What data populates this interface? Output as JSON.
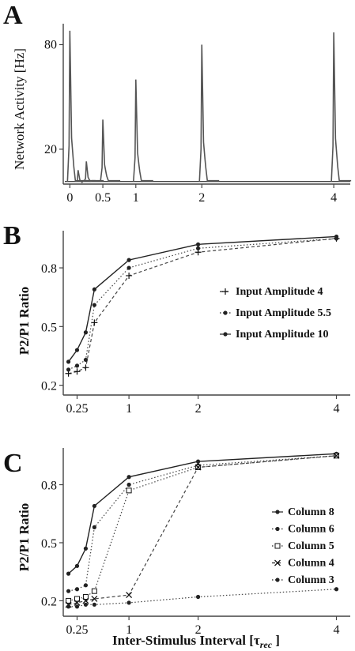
{
  "panels": {
    "A": "A",
    "B": "B",
    "C": "C"
  },
  "chart_data": [
    {
      "panel": "A",
      "type": "line",
      "title": "",
      "xlabel": "",
      "ylabel": "Network Activity [Hz]",
      "x_ticks": [
        "0",
        "0.5",
        "1",
        "2",
        "4"
      ],
      "x_tick_values": [
        0,
        0.5,
        1,
        2,
        4
      ],
      "y_ticks": [
        "20",
        "80"
      ],
      "y_tick_values": [
        20,
        80
      ],
      "xlim": [
        -0.1,
        4.25
      ],
      "ylim": [
        0,
        92
      ],
      "baseline": 1.5,
      "color": "#555555",
      "spikes": [
        {
          "x": 0.0,
          "peak": 88
        },
        {
          "x": 0.125,
          "peak": 8
        },
        {
          "x": 0.25,
          "peak": 13
        },
        {
          "x": 0.5,
          "peak": 37
        },
        {
          "x": 1.0,
          "peak": 60
        },
        {
          "x": 2.0,
          "peak": 80
        },
        {
          "x": 4.0,
          "peak": 87
        }
      ]
    },
    {
      "panel": "B",
      "type": "line",
      "title": "",
      "xlabel": "",
      "ylabel": "P2/P1 Ratio",
      "x_ticks": [
        "0.25",
        "1",
        "2",
        "4"
      ],
      "x_tick_values": [
        0.25,
        1,
        2,
        4
      ],
      "y_ticks": [
        "0.2",
        "0.5",
        "0.8"
      ],
      "y_tick_values": [
        0.2,
        0.5,
        0.8
      ],
      "xlim": [
        0.05,
        4.2
      ],
      "ylim": [
        0.15,
        0.99
      ],
      "legend_position": "right",
      "x": [
        0.125,
        0.25,
        0.375,
        0.5,
        1,
        2,
        4
      ],
      "series": [
        {
          "name": "Input Amplitude 4",
          "values": [
            0.26,
            0.27,
            0.29,
            0.52,
            0.76,
            0.88,
            0.95
          ],
          "style": "dashed",
          "marker": "plus"
        },
        {
          "name": "Input Amplitude 5.5",
          "values": [
            0.28,
            0.3,
            0.33,
            0.61,
            0.8,
            0.9,
            0.95
          ],
          "style": "dotted",
          "marker": "dot"
        },
        {
          "name": "Input Amplitude 10",
          "values": [
            0.32,
            0.38,
            0.47,
            0.69,
            0.84,
            0.92,
            0.96
          ],
          "style": "solid",
          "marker": "dot"
        }
      ]
    },
    {
      "panel": "C",
      "type": "line",
      "title": "",
      "xlabel": "Inter-Stimulus Interval [τ",
      "xlabel_sub": "rec",
      "xlabel_end": " ]",
      "ylabel": "P2/P1 Ratio",
      "x_ticks": [
        "0.25",
        "1",
        "2",
        "4"
      ],
      "x_tick_values": [
        0.25,
        1,
        2,
        4
      ],
      "y_ticks": [
        "0.2",
        "0.5",
        "0.8"
      ],
      "y_tick_values": [
        0.2,
        0.5,
        0.8
      ],
      "xlim": [
        0.05,
        4.2
      ],
      "ylim": [
        0.12,
        0.99
      ],
      "legend_position": "right",
      "x": [
        0.125,
        0.25,
        0.375,
        0.5,
        1,
        2,
        4
      ],
      "series": [
        {
          "name": "Column 8",
          "values": [
            0.34,
            0.38,
            0.47,
            0.69,
            0.84,
            0.92,
            0.96
          ],
          "style": "solid",
          "marker": "dot"
        },
        {
          "name": "Column 6",
          "values": [
            0.25,
            0.26,
            0.28,
            0.58,
            0.8,
            0.9,
            0.95
          ],
          "style": "dotted",
          "marker": "dot"
        },
        {
          "name": "Column 5",
          "values": [
            0.2,
            0.21,
            0.22,
            0.25,
            0.77,
            0.89,
            0.95
          ],
          "style": "dotted",
          "marker": "square"
        },
        {
          "name": "Column 4",
          "values": [
            0.18,
            0.19,
            0.2,
            0.21,
            0.23,
            0.89,
            0.95
          ],
          "style": "dashed",
          "marker": "x"
        },
        {
          "name": "Column 3",
          "values": [
            0.17,
            0.17,
            0.18,
            0.18,
            0.19,
            0.22,
            0.26
          ],
          "style": "dotted",
          "marker": "dot"
        }
      ]
    }
  ]
}
